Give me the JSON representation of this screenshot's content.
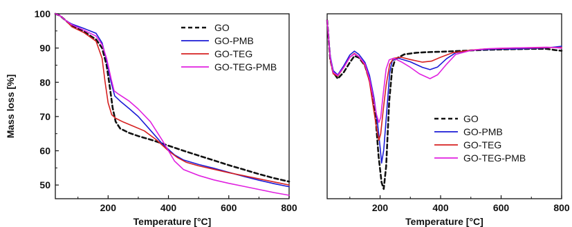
{
  "chart_data": [
    {
      "type": "line",
      "title": "",
      "xlabel": "Temperature [°C]",
      "ylabel": "Mass loss [%]",
      "xlim": [
        25,
        800
      ],
      "ylim": [
        46,
        100
      ],
      "xticks": [
        200,
        400,
        600,
        800
      ],
      "yticks": [
        50,
        60,
        70,
        80,
        90,
        100
      ],
      "grid": false,
      "legend_position": "top-right",
      "series": [
        {
          "name": "GO",
          "color": "#111111",
          "dash": true,
          "points": [
            [
              25,
              100
            ],
            [
              40,
              99.5
            ],
            [
              60,
              98
            ],
            [
              80,
              96.5
            ],
            [
              120,
              94.8
            ],
            [
              160,
              92.5
            ],
            [
              180,
              90
            ],
            [
              195,
              85
            ],
            [
              205,
              79
            ],
            [
              215,
              72.5
            ],
            [
              225,
              68.5
            ],
            [
              240,
              66.5
            ],
            [
              270,
              65.2
            ],
            [
              300,
              64.3
            ],
            [
              350,
              63
            ],
            [
              400,
              61.5
            ],
            [
              450,
              60
            ],
            [
              500,
              58.6
            ],
            [
              550,
              57.2
            ],
            [
              600,
              55.8
            ],
            [
              650,
              54.5
            ],
            [
              700,
              53.2
            ],
            [
              750,
              52
            ],
            [
              800,
              51
            ]
          ]
        },
        {
          "name": "GO-PMB",
          "color": "#1a1ad6",
          "dash": false,
          "points": [
            [
              25,
              100
            ],
            [
              40,
              99.5
            ],
            [
              60,
              98
            ],
            [
              80,
              97
            ],
            [
              120,
              95.7
            ],
            [
              160,
              94.3
            ],
            [
              180,
              91.5
            ],
            [
              195,
              86.5
            ],
            [
              210,
              80
            ],
            [
              222,
              76
            ],
            [
              240,
              74.5
            ],
            [
              270,
              72.3
            ],
            [
              300,
              70
            ],
            [
              340,
              66
            ],
            [
              380,
              62
            ],
            [
              420,
              58.8
            ],
            [
              450,
              57.3
            ],
            [
              500,
              56
            ],
            [
              550,
              54.9
            ],
            [
              600,
              53.7
            ],
            [
              650,
              52.5
            ],
            [
              700,
              51.4
            ],
            [
              750,
              50.4
            ],
            [
              800,
              49.5
            ]
          ]
        },
        {
          "name": "GO-TEG",
          "color": "#d62020",
          "dash": false,
          "points": [
            [
              25,
              100
            ],
            [
              40,
              99.5
            ],
            [
              60,
              98
            ],
            [
              80,
              96.2
            ],
            [
              120,
              94.5
            ],
            [
              160,
              92
            ],
            [
              180,
              87
            ],
            [
              190,
              80
            ],
            [
              200,
              74
            ],
            [
              212,
              70.5
            ],
            [
              225,
              69.5
            ],
            [
              250,
              68.4
            ],
            [
              280,
              67.3
            ],
            [
              320,
              65.8
            ],
            [
              360,
              63.2
            ],
            [
              400,
              60
            ],
            [
              430,
              58
            ],
            [
              460,
              56.6
            ],
            [
              500,
              55.6
            ],
            [
              550,
              54.6
            ],
            [
              600,
              53.6
            ],
            [
              650,
              52.7
            ],
            [
              700,
              51.8
            ],
            [
              750,
              50.9
            ],
            [
              800,
              50
            ]
          ]
        },
        {
          "name": "GO-TEG-PMB",
          "color": "#e020e0",
          "dash": false,
          "points": [
            [
              25,
              100
            ],
            [
              40,
              99.5
            ],
            [
              60,
              98
            ],
            [
              80,
              96.8
            ],
            [
              120,
              95.2
            ],
            [
              160,
              93.5
            ],
            [
              180,
              91
            ],
            [
              195,
              87
            ],
            [
              210,
              81
            ],
            [
              220,
              77.5
            ],
            [
              235,
              76.5
            ],
            [
              270,
              74.5
            ],
            [
              300,
              72.2
            ],
            [
              340,
              68.5
            ],
            [
              380,
              63
            ],
            [
              420,
              57
            ],
            [
              450,
              54.5
            ],
            [
              500,
              52.8
            ],
            [
              550,
              51.5
            ],
            [
              600,
              50.5
            ],
            [
              650,
              49.6
            ],
            [
              700,
              48.7
            ],
            [
              750,
              47.8
            ],
            [
              800,
              47
            ]
          ]
        }
      ]
    },
    {
      "type": "line",
      "title": "",
      "xlabel": "Temperature [°C]",
      "ylabel": "",
      "xlim": [
        25,
        800
      ],
      "xticks": [
        200,
        400,
        600,
        800
      ],
      "yticks": [],
      "grid": false,
      "legend_position": "bottom-right",
      "series": [
        {
          "name": "GO",
          "color": "#111111",
          "dash": true,
          "points": [
            [
              25,
              100
            ],
            [
              35,
              88
            ],
            [
              45,
              84
            ],
            [
              60,
              82
            ],
            [
              80,
              84
            ],
            [
              100,
              87
            ],
            [
              115,
              89
            ],
            [
              130,
              88.5
            ],
            [
              150,
              86
            ],
            [
              170,
              80
            ],
            [
              185,
              70
            ],
            [
              195,
              58
            ],
            [
              205,
              50
            ],
            [
              212,
              48
            ],
            [
              220,
              55
            ],
            [
              230,
              75
            ],
            [
              240,
              85
            ],
            [
              250,
              88
            ],
            [
              280,
              89.5
            ],
            [
              320,
              90
            ],
            [
              360,
              90.2
            ],
            [
              400,
              90.3
            ],
            [
              450,
              90.5
            ],
            [
              500,
              90.7
            ],
            [
              550,
              90.9
            ],
            [
              600,
              91
            ],
            [
              650,
              91.1
            ],
            [
              700,
              91.2
            ],
            [
              750,
              91.2
            ],
            [
              780,
              90.8
            ],
            [
              800,
              90.6
            ]
          ]
        },
        {
          "name": "GO-PMB",
          "color": "#1a1ad6",
          "dash": false,
          "points": [
            [
              25,
              100
            ],
            [
              35,
              89
            ],
            [
              45,
              84.5
            ],
            [
              60,
              83.2
            ],
            [
              80,
              86
            ],
            [
              100,
              89.3
            ],
            [
              115,
              90.5
            ],
            [
              130,
              89.5
            ],
            [
              150,
              87
            ],
            [
              165,
              83
            ],
            [
              180,
              76
            ],
            [
              192,
              68
            ],
            [
              200,
              61
            ],
            [
              205,
              56
            ],
            [
              212,
              60
            ],
            [
              222,
              72
            ],
            [
              232,
              84
            ],
            [
              240,
              87.5
            ],
            [
              260,
              88.3
            ],
            [
              300,
              87.2
            ],
            [
              340,
              85.5
            ],
            [
              365,
              84.8
            ],
            [
              390,
              85.6
            ],
            [
              420,
              88.2
            ],
            [
              450,
              90
            ],
            [
              500,
              90.8
            ],
            [
              550,
              91
            ],
            [
              600,
              91.1
            ],
            [
              650,
              91.2
            ],
            [
              700,
              91.3
            ],
            [
              750,
              91.5
            ],
            [
              780,
              91.8
            ],
            [
              800,
              92
            ]
          ]
        },
        {
          "name": "GO-TEG",
          "color": "#d62020",
          "dash": false,
          "points": [
            [
              25,
              100
            ],
            [
              35,
              88
            ],
            [
              45,
              83.5
            ],
            [
              60,
              82.8
            ],
            [
              80,
              85.5
            ],
            [
              100,
              88.6
            ],
            [
              115,
              89.8
            ],
            [
              130,
              88.8
            ],
            [
              150,
              86
            ],
            [
              165,
              81
            ],
            [
              178,
              73
            ],
            [
              188,
              67
            ],
            [
              196,
              63
            ],
            [
              202,
              65
            ],
            [
              210,
              72
            ],
            [
              220,
              80
            ],
            [
              232,
              86.5
            ],
            [
              245,
              88.3
            ],
            [
              270,
              88.6
            ],
            [
              300,
              87.9
            ],
            [
              340,
              87.1
            ],
            [
              370,
              87.4
            ],
            [
              400,
              88.6
            ],
            [
              440,
              90
            ],
            [
              500,
              90.8
            ],
            [
              550,
              91.2
            ],
            [
              600,
              91.3
            ],
            [
              650,
              91.5
            ],
            [
              700,
              91.5
            ],
            [
              750,
              91.6
            ],
            [
              800,
              91.6
            ]
          ]
        },
        {
          "name": "GO-TEG-PMB",
          "color": "#e020e0",
          "dash": false,
          "points": [
            [
              25,
              100
            ],
            [
              35,
              88.5
            ],
            [
              45,
              84
            ],
            [
              60,
              83
            ],
            [
              80,
              85.5
            ],
            [
              100,
              88.6
            ],
            [
              115,
              89.6
            ],
            [
              130,
              88.8
            ],
            [
              150,
              86.5
            ],
            [
              165,
              82
            ],
            [
              178,
              76
            ],
            [
              188,
              71
            ],
            [
              196,
              68.5
            ],
            [
              202,
              70
            ],
            [
              210,
              77
            ],
            [
              220,
              85
            ],
            [
              230,
              87.8
            ],
            [
              245,
              88.3
            ],
            [
              270,
              87.2
            ],
            [
              300,
              85.5
            ],
            [
              330,
              83.5
            ],
            [
              365,
              82
            ],
            [
              390,
              83.2
            ],
            [
              420,
              86.5
            ],
            [
              450,
              89.5
            ],
            [
              500,
              90.7
            ],
            [
              550,
              91.2
            ],
            [
              600,
              91.4
            ],
            [
              650,
              91.5
            ],
            [
              700,
              91.6
            ],
            [
              750,
              91.7
            ],
            [
              780,
              91.6
            ],
            [
              800,
              91.4
            ]
          ]
        }
      ]
    }
  ]
}
